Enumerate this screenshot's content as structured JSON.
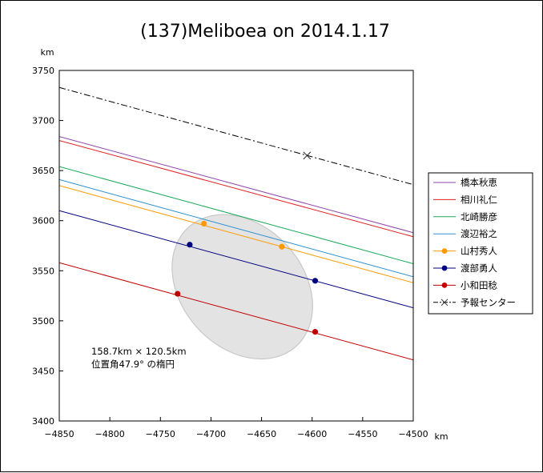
{
  "chart_data": {
    "type": "line",
    "title": "(137)Meliboea on 2014.1.17",
    "xunit": "km",
    "yunit": "km",
    "xlim": [
      -4850,
      -4500
    ],
    "ylim": [
      3400,
      3750
    ],
    "xticks": [
      -4850,
      -4800,
      -4750,
      -4700,
      -4650,
      -4600,
      -4550,
      -4500
    ],
    "yticks": [
      3400,
      3450,
      3500,
      3550,
      3600,
      3650,
      3700,
      3750
    ],
    "xtick_labels": [
      "−4850",
      "−4800",
      "−4750",
      "−4700",
      "−4650",
      "−4600",
      "−4550",
      "−4500"
    ],
    "ytick_labels": [
      "3400",
      "3450",
      "3500",
      "3550",
      "3600",
      "3650",
      "3700",
      "3750"
    ],
    "grid": false,
    "legend_position": "right",
    "series": [
      {
        "name": "橋本秋恵",
        "color": "#8e44ad",
        "marker": "none",
        "x": [
          -4850,
          -4500
        ],
        "y": [
          3684,
          3588
        ]
      },
      {
        "name": "相川礼仁",
        "color": "#e02020",
        "marker": "none",
        "x": [
          -4850,
          -4500
        ],
        "y": [
          3680,
          3584
        ]
      },
      {
        "name": "北崎勝彦",
        "color": "#1aaa5a",
        "marker": "none",
        "x": [
          -4850,
          -4500
        ],
        "y": [
          3654,
          3557
        ]
      },
      {
        "name": "渡辺裕之",
        "color": "#2a8fd0",
        "marker": "none",
        "x": [
          -4850,
          -4500
        ],
        "y": [
          3641,
          3544
        ]
      },
      {
        "name": "山村秀人",
        "color": "#ff9900",
        "marker": "dot",
        "x": [
          -4850,
          -4500
        ],
        "y": [
          3635,
          3538
        ],
        "points": [
          [
            -4707,
            3597
          ],
          [
            -4630,
            3574
          ]
        ]
      },
      {
        "name": "渡部勇人",
        "color": "#000080",
        "marker": "dot",
        "x": [
          -4850,
          -4500
        ],
        "y": [
          3610,
          3513
        ],
        "points": [
          [
            -4721,
            3576
          ],
          [
            -4597,
            3540
          ]
        ]
      },
      {
        "name": "小和田稔",
        "color": "#c00000",
        "marker": "dot",
        "x": [
          -4850,
          -4500
        ],
        "y": [
          3558,
          3461
        ],
        "points": [
          [
            -4733,
            3527
          ],
          [
            -4597,
            3489
          ]
        ]
      },
      {
        "name": "予報センター",
        "color": "#000000",
        "marker": "x",
        "dash": "dashdot",
        "x": [
          -4850,
          -4500
        ],
        "y": [
          3733,
          3636
        ],
        "points": [
          [
            -4605,
            3665
          ]
        ]
      }
    ],
    "ellipse": {
      "center": [
        -4669,
        3534
      ],
      "major_km": 158.7,
      "minor_km": 120.5,
      "angle_deg": 47.9
    },
    "annotation": [
      "158.7km × 120.5km",
      "位置角47.9°  の楕円"
    ]
  }
}
